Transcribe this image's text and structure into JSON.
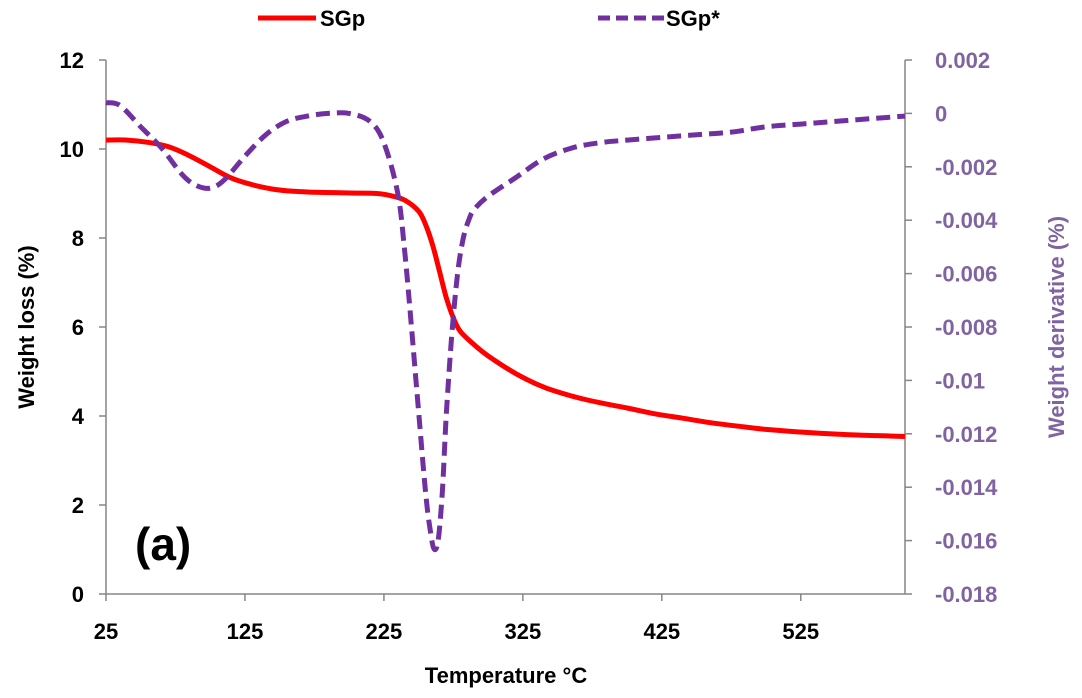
{
  "chart_data": {
    "type": "line",
    "panel_label": "(a)",
    "xlabel": "Temperature °C",
    "ylabel": "Weight loss (%)",
    "y2label": "Weight derivative (%)",
    "xlim": [
      25,
      600
    ],
    "ylim": [
      0,
      12
    ],
    "y2lim": [
      -0.018,
      0.002
    ],
    "x_ticks": [
      25,
      125,
      225,
      325,
      425,
      525
    ],
    "y_ticks": [
      0,
      2,
      4,
      6,
      8,
      10,
      12
    ],
    "y2_ticks": [
      "0.002",
      "0",
      "-0.002",
      "-0.004",
      "-0.006",
      "-0.008",
      "-0.01",
      "-0.012",
      "-0.014",
      "-0.016",
      "-0.018"
    ],
    "legend_position": "top",
    "grid": false,
    "series": [
      {
        "name": "SGp",
        "axis": "left",
        "style": "solid",
        "color": "#ff0000",
        "x": [
          25,
          40,
          55,
          70,
          85,
          100,
          115,
          130,
          145,
          160,
          175,
          190,
          205,
          220,
          230,
          240,
          250,
          255,
          260,
          265,
          270,
          275,
          280,
          290,
          300,
          320,
          340,
          360,
          380,
          400,
          420,
          440,
          460,
          480,
          500,
          520,
          540,
          560,
          580,
          600
        ],
        "y": [
          10.2,
          10.2,
          10.15,
          10.05,
          9.85,
          9.6,
          9.35,
          9.2,
          9.1,
          9.05,
          9.03,
          9.02,
          9.01,
          9.0,
          8.95,
          8.85,
          8.6,
          8.3,
          7.85,
          7.25,
          6.65,
          6.2,
          5.9,
          5.6,
          5.35,
          4.95,
          4.65,
          4.45,
          4.3,
          4.18,
          4.05,
          3.95,
          3.85,
          3.77,
          3.7,
          3.65,
          3.61,
          3.58,
          3.56,
          3.54
        ]
      },
      {
        "name": "SGp*",
        "axis": "right",
        "style": "dashed",
        "color": "#7030a0",
        "x": [
          25,
          35,
          50,
          65,
          80,
          90,
          100,
          110,
          125,
          140,
          155,
          170,
          185,
          200,
          215,
          225,
          235,
          240,
          245,
          250,
          255,
          258,
          261,
          264,
          267,
          270,
          274,
          278,
          282,
          286,
          290,
          300,
          320,
          340,
          360,
          380,
          400,
          425,
          450,
          475,
          500,
          525,
          550,
          575,
          600
        ],
        "y": [
          0.0004,
          0.0003,
          -0.0005,
          -0.0013,
          -0.0023,
          -0.0027,
          -0.0028,
          -0.0025,
          -0.0016,
          -0.0008,
          -0.0003,
          -0.0001,
          0.0,
          0.0,
          -0.0003,
          -0.0011,
          -0.003,
          -0.0052,
          -0.0081,
          -0.0112,
          -0.0142,
          -0.0155,
          -0.0163,
          -0.016,
          -0.0142,
          -0.0112,
          -0.0082,
          -0.006,
          -0.0047,
          -0.004,
          -0.0036,
          -0.0031,
          -0.0024,
          -0.0017,
          -0.0013,
          -0.0011,
          -0.001,
          -0.0009,
          -0.0008,
          -0.0007,
          -0.0005,
          -0.0004,
          -0.0003,
          -0.0002,
          -0.0001
        ]
      }
    ]
  }
}
